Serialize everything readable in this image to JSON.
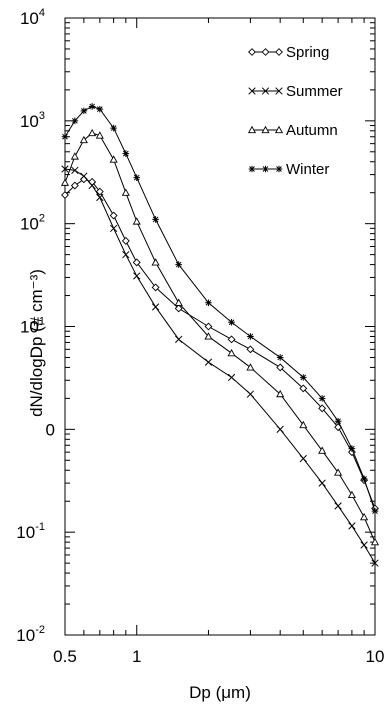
{
  "chart_data": {
    "type": "line",
    "xlabel": "Dp (μm)",
    "ylabel": "dN/dlogDp (# cm⁻³)",
    "x_scale": "log",
    "y_scale": "log",
    "xlim": [
      0.5,
      10
    ],
    "ylim": [
      0.01,
      10000
    ],
    "x_ticks": [
      {
        "value": 0.5,
        "label": "0.5"
      },
      {
        "value": 1,
        "label": "1"
      },
      {
        "value": 10,
        "label": "10"
      }
    ],
    "y_ticks": [
      {
        "value": 10000,
        "base": "10",
        "exp": "4"
      },
      {
        "value": 1000,
        "base": "10",
        "exp": "3"
      },
      {
        "value": 100,
        "base": "10",
        "exp": "2"
      },
      {
        "value": 10,
        "base": "10",
        "exp": "1"
      },
      {
        "value": 1,
        "base": "0",
        "exp": ""
      },
      {
        "value": 0.1,
        "base": "10",
        "exp": "-1"
      },
      {
        "value": 0.01,
        "base": "10",
        "exp": "-2"
      }
    ],
    "legend_position": "top-right",
    "grid": false,
    "series": [
      {
        "name": "Spring",
        "marker": "diamond",
        "x": [
          0.5,
          0.55,
          0.6,
          0.65,
          0.7,
          0.8,
          0.9,
          1.0,
          1.2,
          1.5,
          2.0,
          2.5,
          3.0,
          4.0,
          5.0,
          6.0,
          7.0,
          8.0,
          9.0,
          10.0
        ],
        "y": [
          190,
          235,
          270,
          255,
          205,
          120,
          68,
          42,
          24,
          15,
          10,
          7.5,
          6,
          4,
          2.5,
          1.6,
          1.05,
          0.6,
          0.32,
          0.17
        ]
      },
      {
        "name": "Summer",
        "marker": "x",
        "x": [
          0.5,
          0.55,
          0.6,
          0.65,
          0.7,
          0.8,
          0.9,
          1.0,
          1.2,
          1.5,
          2.0,
          2.5,
          3.0,
          4.0,
          5.0,
          6.0,
          7.0,
          8.0,
          9.0,
          10.0
        ],
        "y": [
          340,
          330,
          290,
          235,
          180,
          90,
          50,
          31,
          15.5,
          7.5,
          4.5,
          3.2,
          2.2,
          1.0,
          0.52,
          0.3,
          0.18,
          0.115,
          0.075,
          0.05
        ]
      },
      {
        "name": "Autumn",
        "marker": "triangle",
        "x": [
          0.5,
          0.55,
          0.6,
          0.65,
          0.7,
          0.8,
          0.9,
          1.0,
          1.2,
          1.5,
          2.0,
          2.5,
          3.0,
          4.0,
          5.0,
          6.0,
          7.0,
          8.0,
          9.0,
          10.0
        ],
        "y": [
          250,
          450,
          650,
          760,
          720,
          420,
          200,
          105,
          42,
          17,
          8,
          5.5,
          4,
          2.2,
          1.1,
          0.62,
          0.38,
          0.23,
          0.14,
          0.08
        ]
      },
      {
        "name": "Winter",
        "marker": "asterisk",
        "x": [
          0.5,
          0.55,
          0.6,
          0.65,
          0.7,
          0.8,
          0.9,
          1.0,
          1.2,
          1.5,
          2.0,
          2.5,
          3.0,
          4.0,
          5.0,
          6.0,
          7.0,
          8.0,
          9.0,
          10.0
        ],
        "y": [
          700,
          1000,
          1250,
          1380,
          1300,
          850,
          480,
          280,
          110,
          40,
          17,
          11,
          8,
          5,
          3.2,
          2,
          1.2,
          0.65,
          0.33,
          0.16
        ]
      }
    ]
  }
}
